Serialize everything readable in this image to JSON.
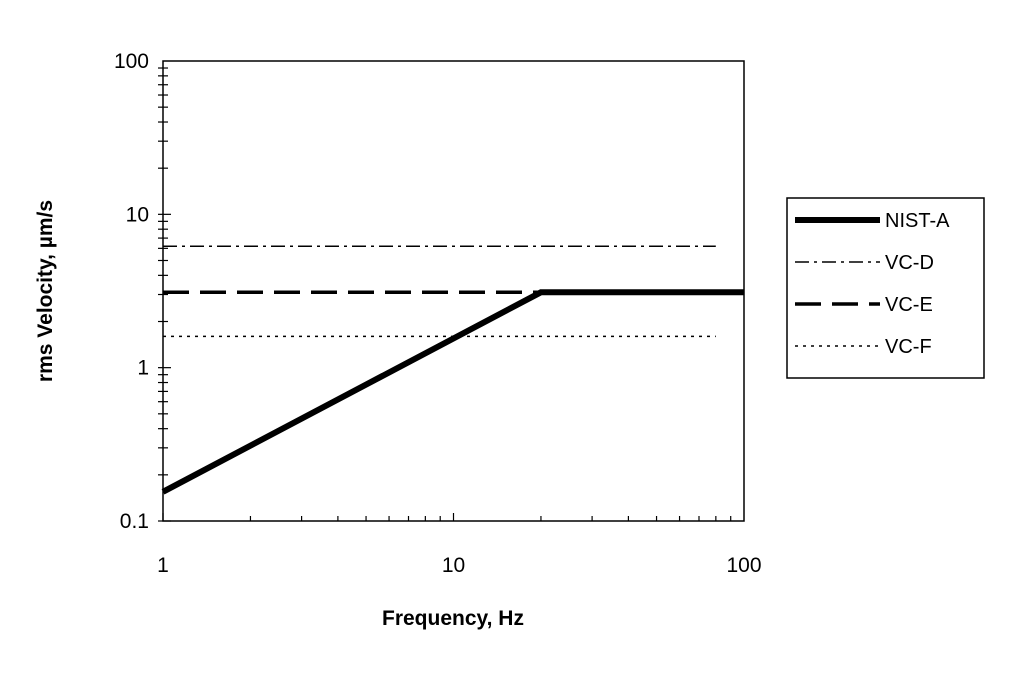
{
  "chart_data": {
    "type": "line",
    "xlabel": "Frequency, Hz",
    "ylabel": "rms Velocity, µm/s",
    "x_scale": "log",
    "y_scale": "log",
    "xlim": [
      1,
      100
    ],
    "ylim": [
      0.1,
      100
    ],
    "x_ticks": [
      "1",
      "10",
      "100"
    ],
    "y_ticks": [
      "0.1",
      "1",
      "10",
      "100"
    ],
    "grid": false,
    "legend_position": "right",
    "series": [
      {
        "name": "NIST-A",
        "style": "thick-solid",
        "color": "#000000",
        "x": [
          1,
          20,
          100
        ],
        "y": [
          0.155,
          3.1,
          3.1
        ]
      },
      {
        "name": "VC-D",
        "style": "dash-dot",
        "color": "#000000",
        "x": [
          1,
          80
        ],
        "y": [
          6.2,
          6.2
        ]
      },
      {
        "name": "VC-E",
        "style": "long-dash",
        "color": "#000000",
        "x": [
          1,
          20
        ],
        "y": [
          3.1,
          3.1
        ]
      },
      {
        "name": "VC-F",
        "style": "dotted",
        "color": "#000000",
        "x": [
          1,
          80
        ],
        "y": [
          1.6,
          1.6
        ]
      }
    ]
  }
}
